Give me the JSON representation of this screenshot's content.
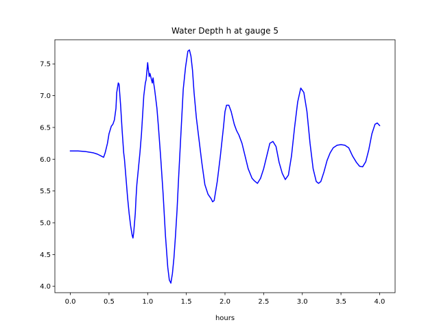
{
  "chart_data": {
    "type": "line",
    "title": "Water Depth h at gauge 5",
    "xlabel": "hours",
    "ylabel": "",
    "xlim": [
      -0.2,
      4.2
    ],
    "ylim": [
      3.9,
      7.88
    ],
    "grid": false,
    "xticks": [
      0.0,
      0.5,
      1.0,
      1.5,
      2.0,
      2.5,
      3.0,
      3.5,
      4.0
    ],
    "xtick_labels": [
      "0.0",
      "0.5",
      "1.0",
      "1.5",
      "2.0",
      "2.5",
      "3.0",
      "3.5",
      "4.0"
    ],
    "yticks": [
      4.0,
      4.5,
      5.0,
      5.5,
      6.0,
      6.5,
      7.0,
      7.5
    ],
    "ytick_labels": [
      "4.0",
      "4.5",
      "5.0",
      "5.5",
      "6.0",
      "6.5",
      "7.0",
      "7.5"
    ],
    "series": [
      {
        "color": "#0000ff",
        "x": [
          0.0,
          0.1,
          0.2,
          0.3,
          0.35,
          0.4,
          0.43,
          0.45,
          0.48,
          0.5,
          0.53,
          0.55,
          0.57,
          0.59,
          0.6,
          0.62,
          0.63,
          0.65,
          0.67,
          0.69,
          0.7,
          0.72,
          0.74,
          0.76,
          0.78,
          0.8,
          0.81,
          0.82,
          0.84,
          0.85,
          0.86,
          0.88,
          0.9,
          0.92,
          0.95,
          0.97,
          0.98,
          1.0,
          1.01,
          1.02,
          1.03,
          1.05,
          1.06,
          1.07,
          1.08,
          1.09,
          1.1,
          1.12,
          1.14,
          1.17,
          1.2,
          1.23,
          1.26,
          1.28,
          1.3,
          1.32,
          1.34,
          1.36,
          1.38,
          1.4,
          1.43,
          1.46,
          1.49,
          1.52,
          1.54,
          1.56,
          1.58,
          1.6,
          1.63,
          1.66,
          1.7,
          1.74,
          1.78,
          1.82,
          1.84,
          1.86,
          1.9,
          1.94,
          1.98,
          2.0,
          2.02,
          2.05,
          2.08,
          2.12,
          2.15,
          2.18,
          2.22,
          2.25,
          2.3,
          2.35,
          2.38,
          2.42,
          2.46,
          2.5,
          2.55,
          2.58,
          2.62,
          2.66,
          2.7,
          2.74,
          2.78,
          2.82,
          2.86,
          2.9,
          2.94,
          2.98,
          3.02,
          3.06,
          3.1,
          3.14,
          3.18,
          3.21,
          3.24,
          3.28,
          3.32,
          3.36,
          3.4,
          3.45,
          3.5,
          3.55,
          3.6,
          3.65,
          3.7,
          3.74,
          3.78,
          3.82,
          3.86,
          3.9,
          3.94,
          3.97,
          4.0
        ],
        "y": [
          6.13,
          6.13,
          6.12,
          6.1,
          6.08,
          6.05,
          6.03,
          6.1,
          6.25,
          6.4,
          6.52,
          6.55,
          6.62,
          6.8,
          7.05,
          7.2,
          7.18,
          6.85,
          6.45,
          6.1,
          6.0,
          5.7,
          5.4,
          5.15,
          4.95,
          4.8,
          4.76,
          4.85,
          5.15,
          5.4,
          5.6,
          5.85,
          6.1,
          6.4,
          7.0,
          7.2,
          7.25,
          7.52,
          7.4,
          7.3,
          7.35,
          7.25,
          7.2,
          7.28,
          7.18,
          7.1,
          7.0,
          6.8,
          6.5,
          6.0,
          5.45,
          4.8,
          4.3,
          4.1,
          4.05,
          4.2,
          4.45,
          4.8,
          5.2,
          5.7,
          6.4,
          7.1,
          7.45,
          7.7,
          7.72,
          7.62,
          7.4,
          7.05,
          6.65,
          6.35,
          5.95,
          5.6,
          5.45,
          5.38,
          5.33,
          5.35,
          5.65,
          6.05,
          6.5,
          6.75,
          6.85,
          6.85,
          6.75,
          6.55,
          6.45,
          6.38,
          6.25,
          6.1,
          5.85,
          5.7,
          5.66,
          5.62,
          5.7,
          5.85,
          6.1,
          6.25,
          6.28,
          6.2,
          5.95,
          5.78,
          5.68,
          5.75,
          6.05,
          6.5,
          6.9,
          7.12,
          7.05,
          6.75,
          6.25,
          5.85,
          5.65,
          5.62,
          5.65,
          5.8,
          5.98,
          6.1,
          6.18,
          6.22,
          6.23,
          6.22,
          6.18,
          6.05,
          5.95,
          5.89,
          5.88,
          5.96,
          6.15,
          6.4,
          6.55,
          6.57,
          6.53
        ]
      }
    ]
  }
}
